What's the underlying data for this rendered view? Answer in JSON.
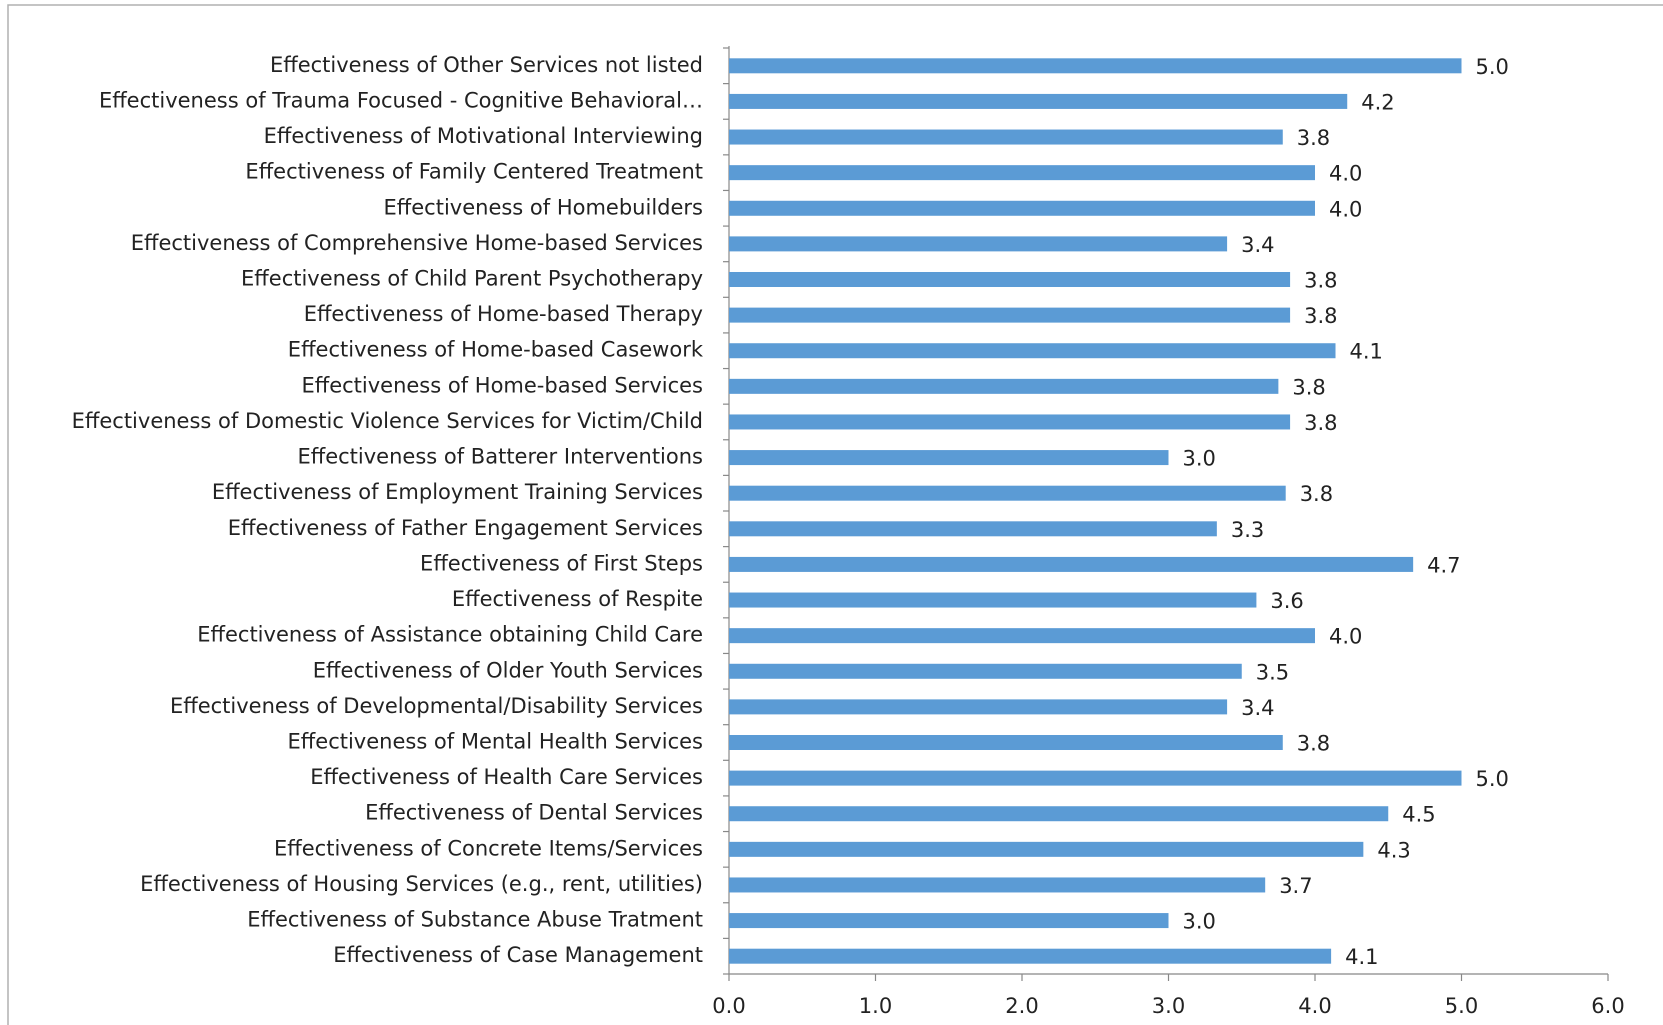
{
  "chart_data": {
    "type": "bar",
    "orientation": "horizontal",
    "color": "#5b9bd5",
    "categories": [
      "Effectiveness of Other Services not listed",
      "Effectiveness of Trauma Focused - Cognitive Behavioral…",
      "Effectiveness of Motivational Interviewing",
      "Effectiveness of Family Centered Treatment",
      "Effectiveness of Homebuilders",
      "Effectiveness of Comprehensive Home-based Services",
      "Effectiveness of Child Parent Psychotherapy",
      "Effectiveness of Home-based Therapy",
      "Effectiveness of Home-based Casework",
      "Effectiveness of Home-based Services",
      "Effectiveness of Domestic Violence Services for Victim/Child",
      "Effectiveness of Batterer Interventions",
      "Effectiveness of Employment Training Services",
      "Effectiveness of Father Engagement Services",
      "Effectiveness of First Steps",
      "Effectiveness of Respite",
      "Effectiveness of Assistance obtaining Child Care",
      "Effectiveness of Older Youth Services",
      "Effectiveness of Developmental/Disability Services",
      "Effectiveness of Mental Health Services",
      "Effectiveness of Health Care Services",
      "Effectiveness of Dental Services",
      "Effectiveness of Concrete Items/Services",
      "Effectiveness of Housing Services (e.g., rent, utilities)",
      "Effectiveness of Substance Abuse Tratment",
      "Effectiveness of Case Management"
    ],
    "values": [
      5.0,
      4.22,
      3.78,
      4.0,
      4.0,
      3.4,
      3.83,
      3.83,
      4.14,
      3.75,
      3.83,
      3.0,
      3.8,
      3.33,
      4.67,
      3.6,
      4.0,
      3.5,
      3.4,
      3.78,
      5.0,
      4.5,
      4.33,
      3.66,
      3.0,
      4.11
    ],
    "value_labels": [
      "5.0",
      "4.2",
      "3.8",
      "4.0",
      "4.0",
      "3.4",
      "3.8",
      "3.8",
      "4.1",
      "3.8",
      "3.8",
      "3.0",
      "3.8",
      "3.3",
      "4.7",
      "3.6",
      "4.0",
      "3.5",
      "3.4",
      "3.8",
      "5.0",
      "4.5",
      "4.3",
      "3.7",
      "3.0",
      "4.1"
    ],
    "xlim": [
      0,
      6
    ],
    "xticks": [
      {
        "value": 0,
        "label": "0.0"
      },
      {
        "value": 1,
        "label": "1.0"
      },
      {
        "value": 2,
        "label": "2.0"
      },
      {
        "value": 3,
        "label": "3.0"
      },
      {
        "value": 4,
        "label": "4.0"
      },
      {
        "value": 5,
        "label": "5.0"
      },
      {
        "value": 6,
        "label": "6.0"
      }
    ],
    "grid": false
  }
}
